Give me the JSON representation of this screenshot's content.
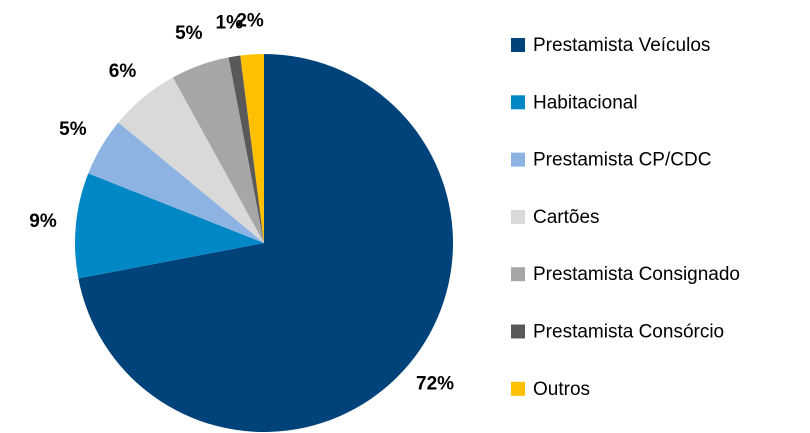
{
  "chart_data": {
    "type": "pie",
    "categories": [
      "Prestamista Veículos",
      "Habitacional",
      "Prestamista CP/CDC",
      "Cartões",
      "Prestamista Consignado",
      "Prestamista Consórcio",
      "Outros"
    ],
    "values": [
      72,
      9,
      5,
      6,
      5,
      1,
      2
    ],
    "value_labels": [
      "72%",
      "9%",
      "5%",
      "6%",
      "5%",
      "1%",
      "2%"
    ],
    "colors": [
      "#00427a",
      "#0088c6",
      "#8db3e2",
      "#d9d9d9",
      "#a6a6a6",
      "#595959",
      "#ffc000"
    ],
    "legend": "right"
  }
}
